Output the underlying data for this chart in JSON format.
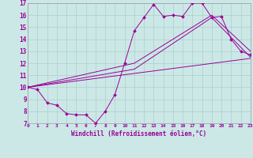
{
  "xlabel": "Windchill (Refroidissement éolien,°C)",
  "xlim": [
    0,
    23
  ],
  "ylim": [
    7,
    17
  ],
  "yticks": [
    7,
    8,
    9,
    10,
    11,
    12,
    13,
    14,
    15,
    16,
    17
  ],
  "xticks": [
    0,
    1,
    2,
    3,
    4,
    5,
    6,
    7,
    8,
    9,
    10,
    11,
    12,
    13,
    14,
    15,
    16,
    17,
    18,
    19,
    20,
    21,
    22,
    23
  ],
  "bg_color": "#cce8e6",
  "line_color": "#990099",
  "grid_color": "#aacfcd",
  "main_x": [
    0,
    1,
    2,
    3,
    4,
    5,
    6,
    7,
    8,
    9,
    10,
    11,
    12,
    13,
    14,
    15,
    16,
    17,
    18,
    19,
    20,
    21,
    22,
    23
  ],
  "main_y": [
    10.0,
    9.8,
    8.7,
    8.5,
    7.8,
    7.7,
    7.7,
    7.0,
    8.0,
    9.4,
    12.0,
    14.7,
    15.8,
    16.9,
    15.9,
    16.0,
    15.9,
    17.0,
    17.0,
    15.8,
    15.9,
    14.0,
    13.0,
    12.7
  ],
  "trend_lines": [
    {
      "x": [
        0,
        11,
        19,
        23
      ],
      "y": [
        10.0,
        12.0,
        16.0,
        13.0
      ]
    },
    {
      "x": [
        0,
        11,
        19,
        23
      ],
      "y": [
        10.0,
        11.5,
        15.8,
        12.5
      ]
    },
    {
      "x": [
        0,
        23
      ],
      "y": [
        10.0,
        12.4
      ]
    }
  ]
}
